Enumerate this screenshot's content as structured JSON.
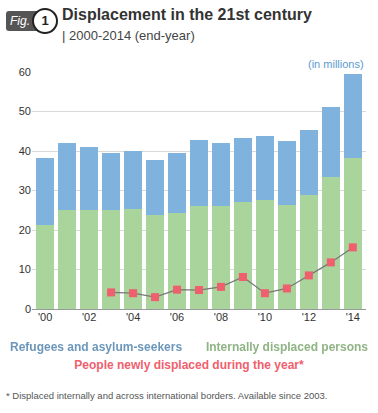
{
  "chart_data": {
    "type": "bar",
    "figure_label": "Fig.",
    "figure_number": "1",
    "title": "Displacement in the 21st century",
    "subtitle": "| 2000-2014 (end-year)",
    "unit_note": "(in millions)",
    "categories": [
      "'00",
      null,
      "'02",
      null,
      "'04",
      null,
      "'06",
      null,
      "'08",
      null,
      "'10",
      null,
      "'12",
      null,
      "'14"
    ],
    "stacked": true,
    "grid": true,
    "ylim": [
      0,
      60
    ],
    "yticks": [
      0,
      10,
      20,
      30,
      40,
      50,
      60
    ],
    "series": [
      {
        "name": "Refugees and asylum-seekers",
        "color": "#7fb2dc",
        "values": [
          17.0,
          17.1,
          16.0,
          14.4,
          14.6,
          14.1,
          15.0,
          16.7,
          16.0,
          16.2,
          16.2,
          16.1,
          16.4,
          17.9,
          21.3
        ]
      },
      {
        "name": "Internally displaced persons",
        "color": "#a9d49c",
        "values": [
          21.2,
          25.0,
          25.0,
          25.0,
          25.3,
          23.7,
          24.4,
          26.0,
          26.0,
          27.1,
          27.5,
          26.4,
          28.8,
          33.3,
          38.2
        ]
      },
      {
        "name": "People newly displaced during the year*",
        "type": "line",
        "color": "#ef5f6e",
        "marker": "square",
        "values": [
          null,
          null,
          null,
          4.2,
          4.0,
          3.0,
          4.9,
          4.8,
          5.6,
          8.1,
          4.0,
          5.2,
          8.5,
          11.8,
          15.6
        ]
      }
    ],
    "footnote": "* Displaced internally and across international borders. Available since 2003."
  }
}
